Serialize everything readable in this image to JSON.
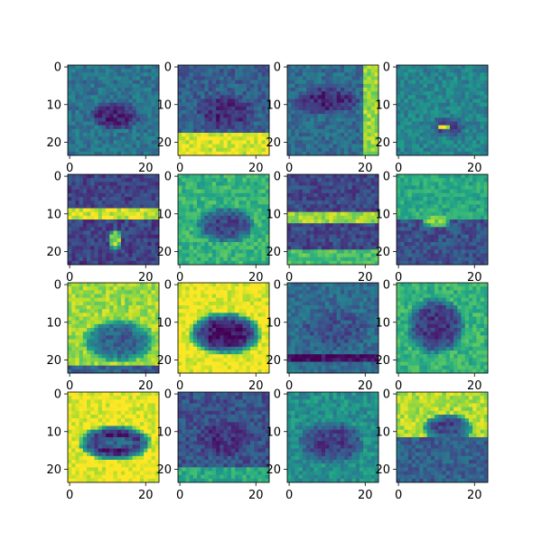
{
  "chart_data": {
    "type": "heatmap",
    "layout": "4x4 grid of image panels",
    "colormap": "viridis",
    "image_size": [
      24,
      24
    ],
    "x_ticks": [
      "0",
      "20"
    ],
    "y_ticks": [
      "0",
      "10",
      "20"
    ],
    "title": "",
    "xlabel": "",
    "ylabel": "",
    "panels": [
      {
        "desc": "dark car silhouette in center, teal background, bright lower strip",
        "base": 0.38,
        "shapes": [
          {
            "t": "blob",
            "cx": 12,
            "cy": 13,
            "rx": 7,
            "ry": 4,
            "v": 0.1
          }
        ],
        "seed": 1
      },
      {
        "desc": "dark car shape, bright yellow band at bottom",
        "base": 0.3,
        "shapes": [
          {
            "t": "blob",
            "cx": 12,
            "cy": 12,
            "rx": 8,
            "ry": 5,
            "v": 0.12
          },
          {
            "t": "band",
            "y0": 18,
            "y1": 24,
            "v": 0.95
          }
        ],
        "seed": 2
      },
      {
        "desc": "dark horizontal car, bright right edge",
        "base": 0.35,
        "shapes": [
          {
            "t": "blob",
            "cx": 10,
            "cy": 9,
            "rx": 9,
            "ry": 4,
            "v": 0.12
          },
          {
            "t": "col",
            "x0": 20,
            "x1": 24,
            "v": 0.85
          }
        ],
        "seed": 3
      },
      {
        "desc": "mixed teal/green with bright spot near bottom",
        "base": 0.45,
        "shapes": [
          {
            "t": "blob",
            "cx": 13,
            "cy": 16,
            "rx": 5,
            "ry": 3,
            "v": 0.2
          },
          {
            "t": "blob",
            "cx": 12,
            "cy": 16,
            "rx": 2,
            "ry": 1,
            "v": 0.95
          }
        ],
        "seed": 4
      },
      {
        "desc": "dark purple top, bright horizontal stripe, dark bottom",
        "base": 0.2,
        "shapes": [
          {
            "t": "band",
            "y0": 9,
            "y1": 12,
            "v": 0.92
          },
          {
            "t": "blob",
            "cx": 12,
            "cy": 17,
            "rx": 2,
            "ry": 3,
            "v": 0.85
          }
        ],
        "seed": 5
      },
      {
        "desc": "green background, dark oval car",
        "base": 0.65,
        "shapes": [
          {
            "t": "blob",
            "cx": 12,
            "cy": 13,
            "rx": 8,
            "ry": 5,
            "v": 0.2
          }
        ],
        "seed": 6
      },
      {
        "desc": "dark purple with bright yellow noisy band",
        "base": 0.22,
        "shapes": [
          {
            "t": "band",
            "y0": 10,
            "y1": 13,
            "v": 0.85
          },
          {
            "t": "band",
            "y0": 20,
            "y1": 24,
            "v": 0.7
          }
        ],
        "seed": 7
      },
      {
        "desc": "light green top, dark blue bottom region",
        "base": 0.6,
        "shapes": [
          {
            "t": "band",
            "y0": 12,
            "y1": 24,
            "v": 0.25
          },
          {
            "t": "blob",
            "cx": 10,
            "cy": 12,
            "rx": 4,
            "ry": 2,
            "v": 0.8
          }
        ],
        "seed": 8
      },
      {
        "desc": "yellow background, dark car in lower half",
        "base": 0.85,
        "shapes": [
          {
            "t": "blob",
            "cx": 13,
            "cy": 15,
            "rx": 10,
            "ry": 6,
            "v": 0.3
          },
          {
            "t": "band",
            "y0": 22,
            "y1": 24,
            "v": 0.3
          }
        ],
        "seed": 9
      },
      {
        "desc": "bright yellow background, very dark car silhouette",
        "base": 0.97,
        "shapes": [
          {
            "t": "blob",
            "cx": 12,
            "cy": 13,
            "rx": 10,
            "ry": 6,
            "v": 0.05
          }
        ],
        "seed": 10
      },
      {
        "desc": "teal/blue with dark stripe near bottom",
        "base": 0.35,
        "shapes": [
          {
            "t": "blob",
            "cx": 12,
            "cy": 12,
            "rx": 9,
            "ry": 6,
            "v": 0.25
          },
          {
            "t": "band",
            "y0": 19,
            "y1": 21,
            "v": 0.02
          }
        ],
        "seed": 11
      },
      {
        "desc": "green border, dark blob center-left",
        "base": 0.65,
        "shapes": [
          {
            "t": "blob",
            "cx": 10,
            "cy": 11,
            "rx": 8,
            "ry": 8,
            "v": 0.15
          }
        ],
        "seed": 12
      },
      {
        "desc": "bright yellow background, dark car outline",
        "base": 0.97,
        "shapes": [
          {
            "t": "blob",
            "cx": 12,
            "cy": 13,
            "rx": 10,
            "ry": 5,
            "v": 0.05
          },
          {
            "t": "blob",
            "cx": 12,
            "cy": 13,
            "rx": 6,
            "ry": 2,
            "v": 0.35
          }
        ],
        "seed": 13
      },
      {
        "desc": "dark noisy purple/teal texture",
        "base": 0.25,
        "shapes": [
          {
            "t": "blob",
            "cx": 12,
            "cy": 12,
            "rx": 8,
            "ry": 5,
            "v": 0.15
          },
          {
            "t": "band",
            "y0": 20,
            "y1": 24,
            "v": 0.6
          }
        ],
        "seed": 14
      },
      {
        "desc": "green-teal background, dark curved car",
        "base": 0.5,
        "shapes": [
          {
            "t": "blob",
            "cx": 11,
            "cy": 13,
            "rx": 9,
            "ry": 6,
            "v": 0.18
          }
        ],
        "seed": 15
      },
      {
        "desc": "yellow top-left, dark car, mixed blocky bottom",
        "base": 0.88,
        "shapes": [
          {
            "t": "blob",
            "cx": 13,
            "cy": 9,
            "rx": 7,
            "ry": 4,
            "v": 0.2
          },
          {
            "t": "band",
            "y0": 12,
            "y1": 24,
            "v": 0.3
          }
        ],
        "seed": 16
      }
    ]
  }
}
